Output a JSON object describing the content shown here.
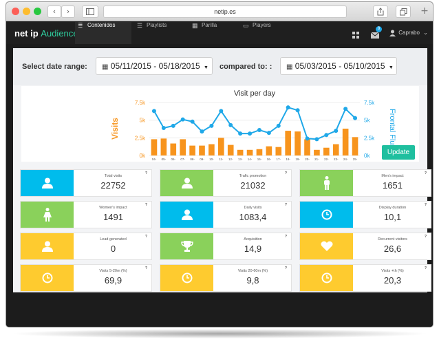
{
  "browser": {
    "url": "netip.es",
    "buttons": {
      "back": "‹",
      "forward": "›",
      "new_tab": "+"
    }
  },
  "app": {
    "brand_prefix": "net ip",
    "brand_suffix": "Audience",
    "nav": [
      {
        "label": "Contenidos",
        "icon": "database-icon",
        "active": true
      },
      {
        "label": "Playlists",
        "icon": "list-icon",
        "active": false
      },
      {
        "label": "Parilla",
        "icon": "grid-table-icon",
        "active": false
      },
      {
        "label": "Players",
        "icon": "display-icon",
        "active": false
      }
    ],
    "notifications_count": "8",
    "user": "Caprabo",
    "accent": "#2fd0a0"
  },
  "filter": {
    "date_label": "Select date range:",
    "date_range": "05/11/2015 - 05/18/2015",
    "compared_label": "compared to: :",
    "compared_range": "05/03/2015 - 05/10/2015"
  },
  "chart_data": {
    "type": "bar",
    "title": "Visit per day",
    "ylabel": "Visits",
    "y2label": "Frontal Flux",
    "yticks": [
      "0k",
      "2.5k",
      "5k",
      "7.5k"
    ],
    "y2ticks": [
      "0k",
      "2.5k",
      "5k",
      "7.5k"
    ],
    "ylim": [
      0,
      7500
    ],
    "y2lim": [
      0,
      7500
    ],
    "categories": [
      "04-",
      "05-",
      "06-",
      "07-",
      "08-",
      "09-",
      "10-",
      "11-",
      "12-",
      "13-",
      "14-",
      "15-",
      "16-",
      "17-",
      "18-",
      "19-",
      "20-",
      "21-",
      "22-",
      "23-",
      "24-",
      "25-"
    ],
    "series": [
      {
        "type": "bar",
        "color": "#f7941d",
        "axis": "left",
        "values": [
          2300,
          2400,
          1700,
          2300,
          1400,
          1400,
          1600,
          2500,
          1500,
          800,
          800,
          900,
          1300,
          1200,
          3500,
          3400,
          2300,
          800,
          1100,
          1600,
          3800,
          2600
        ]
      },
      {
        "type": "line",
        "color": "#1fa8e8",
        "axis": "right",
        "values": [
          6300,
          3900,
          4200,
          5100,
          4800,
          3400,
          4200,
          6300,
          4300,
          3100,
          3100,
          3600,
          3200,
          4200,
          6800,
          6400,
          2400,
          2300,
          2900,
          3500,
          6600,
          5300
        ]
      }
    ],
    "grid": true
  },
  "update_label": "Update",
  "colors": {
    "cyan": "#00bcec",
    "green": "#8ad15b",
    "yellow": "#fecb2f"
  },
  "stats": [
    {
      "label": "Total visits",
      "value": "22752",
      "color": "cyan",
      "icon": "user-icon"
    },
    {
      "label": "Trafic promotion",
      "value": "21032",
      "color": "green",
      "icon": "user-icon"
    },
    {
      "label": "Men's impact",
      "value": "1651",
      "color": "green",
      "icon": "male-icon"
    },
    {
      "label": "Women's impact",
      "value": "1491",
      "color": "green",
      "icon": "female-icon"
    },
    {
      "label": "Daily visits",
      "value": "1083,4",
      "color": "cyan",
      "icon": "user-icon"
    },
    {
      "label": "Display duration",
      "value": "10,1",
      "color": "cyan",
      "icon": "clock-icon"
    },
    {
      "label": "Lead generated",
      "value": "0",
      "color": "yellow",
      "icon": "user-icon"
    },
    {
      "label": "Acquisition",
      "value": "14,9",
      "color": "green",
      "icon": "trophy-icon"
    },
    {
      "label": "Recurrent visitors",
      "value": "26,6",
      "color": "yellow",
      "icon": "heart-icon"
    },
    {
      "label": "Visits 5-20m (%)",
      "value": "69,9",
      "color": "yellow",
      "icon": "clock-icon"
    },
    {
      "label": "Visits 20-60m (%)",
      "value": "9,8",
      "color": "yellow",
      "icon": "clock-icon"
    },
    {
      "label": "Visits +th (%)",
      "value": "20,3",
      "color": "yellow",
      "icon": "clock-icon"
    }
  ],
  "help_mark": "?"
}
